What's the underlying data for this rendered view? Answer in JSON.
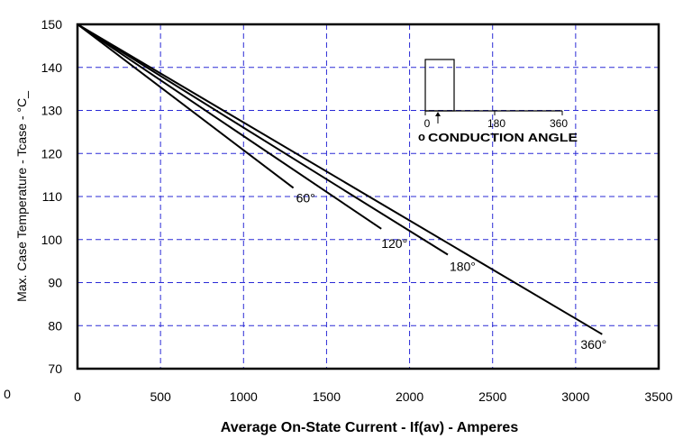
{
  "chart_data": {
    "type": "line",
    "title": "",
    "xlabel": "Average On-State Current - If(av) - Amperes",
    "ylabel": "Max. Case Temperature - Tcase - °C_",
    "xlim": [
      0,
      3500
    ],
    "ylim": [
      70,
      150
    ],
    "x_ticks": [
      0,
      500,
      1000,
      1500,
      2000,
      2500,
      3000,
      3500
    ],
    "y_ticks": [
      70,
      80,
      90,
      100,
      110,
      120,
      130,
      140,
      150
    ],
    "x_tick_labels": [
      "0",
      "500",
      "1000",
      "1500",
      "2000",
      "2500",
      "3000",
      "3500"
    ],
    "y_tick_labels": [
      "70",
      "80",
      "90",
      "100",
      "110",
      "120",
      "130",
      "140",
      "150"
    ],
    "grid": true,
    "legend": "none",
    "series": [
      {
        "name": "60°",
        "x": [
          0,
          1300
        ],
        "y": [
          150,
          112
        ]
      },
      {
        "name": "120°",
        "x": [
          0,
          1830
        ],
        "y": [
          150,
          102.5
        ]
      },
      {
        "name": "180°",
        "x": [
          0,
          2230
        ],
        "y": [
          150,
          96.5
        ]
      },
      {
        "name": "360°",
        "x": [
          0,
          3160
        ],
        "y": [
          150,
          78
        ]
      }
    ],
    "annotations": {
      "stray_tick": "0",
      "inset": {
        "tick_labels": [
          "0",
          "180",
          "360"
        ],
        "caption": "CONDUCTION ANGLE",
        "marker": "o"
      }
    }
  }
}
